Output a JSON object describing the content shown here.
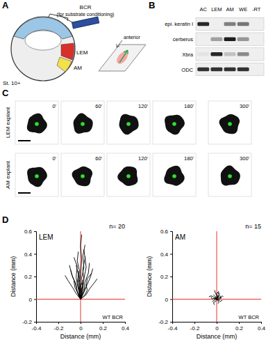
{
  "panel_a": {
    "label": "A",
    "bcr": "BCR",
    "bcr_note": "(for substrate conditioning)",
    "lem": "LEM",
    "am": "AM",
    "stage": "St. 10+",
    "anterior": "anterior"
  },
  "panel_b": {
    "label": "B",
    "columns": [
      "AC",
      "LEM",
      "AM",
      "WE",
      "-RT"
    ],
    "rows": [
      {
        "label": "epi. keratin I",
        "intensities": [
          0.9,
          0,
          0.5,
          0.55,
          0
        ]
      },
      {
        "label": "cerberus",
        "intensities": [
          0,
          0.35,
          0.95,
          0.4,
          0
        ]
      },
      {
        "label": "Xbra",
        "intensities": [
          0.05,
          0.9,
          0.2,
          0.45,
          0
        ]
      },
      {
        "label": "ODC",
        "intensities": [
          0.85,
          0.85,
          0.85,
          0.85,
          0
        ]
      }
    ]
  },
  "panel_c": {
    "label": "C",
    "rows": [
      {
        "label": "LEM explant",
        "times": [
          "0'",
          "60'",
          "120'",
          "180'",
          "300'"
        ]
      },
      {
        "label": "AM explant",
        "times": [
          "0'",
          "60'",
          "120'",
          "180'",
          "300'"
        ]
      }
    ]
  },
  "panel_d": {
    "label": "D"
  },
  "chart_data": [
    {
      "type": "line",
      "title": "n= 20",
      "annotations": [
        "LEM",
        "WT BCR"
      ],
      "color": "#000000",
      "xlabel": "Distance (mm)",
      "ylabel": "Distance (mm)",
      "xlim": [
        -0.4,
        0.4
      ],
      "ylim": [
        -0.2,
        0.6
      ],
      "xticks": [
        -0.4,
        -0.2,
        0,
        0.2,
        0.4
      ],
      "yticks": [
        -0.2,
        0,
        0.2,
        0.4,
        0.6
      ],
      "reference_lines": {
        "x": [
          0
        ],
        "y": [
          0
        ],
        "color": "#e8302a"
      },
      "series": [
        {
          "x": [
            0,
            -0.01,
            0.0,
            0.01,
            0.0,
            0.01
          ],
          "values": [
            0,
            0.1,
            0.22,
            0.35,
            0.47,
            0.57
          ]
        },
        {
          "x": [
            0,
            0.02,
            0.03,
            0.05,
            0.04
          ],
          "values": [
            0,
            0.08,
            0.18,
            0.28,
            0.38
          ]
        },
        {
          "x": [
            0,
            -0.03,
            -0.05,
            -0.08,
            -0.1
          ],
          "values": [
            0,
            0.07,
            0.15,
            0.22,
            0.3
          ]
        },
        {
          "x": [
            0,
            0.03,
            0.06,
            0.09,
            0.11
          ],
          "values": [
            0,
            0.06,
            0.13,
            0.2,
            0.27
          ]
        },
        {
          "x": [
            0,
            -0.02,
            -0.04,
            -0.03,
            -0.06
          ],
          "values": [
            0,
            0.09,
            0.19,
            0.29,
            0.37
          ]
        },
        {
          "x": [
            0,
            0.01,
            0.03,
            0.02,
            0.04,
            0.03
          ],
          "values": [
            0,
            0.08,
            0.17,
            0.26,
            0.36,
            0.44
          ]
        },
        {
          "x": [
            0,
            -0.04,
            -0.07,
            -0.11,
            -0.14
          ],
          "values": [
            0,
            0.05,
            0.1,
            0.16,
            0.21
          ]
        },
        {
          "x": [
            0,
            0.05,
            0.08,
            0.12,
            0.15
          ],
          "values": [
            0,
            0.04,
            0.09,
            0.14,
            0.18
          ]
        },
        {
          "x": [
            0,
            -0.01,
            -0.02,
            -0.01,
            -0.02
          ],
          "values": [
            0,
            0.06,
            0.12,
            0.19,
            0.25
          ]
        },
        {
          "x": [
            0,
            0.02,
            0.01,
            0.03,
            0.02,
            0.04
          ],
          "values": [
            0,
            0.09,
            0.19,
            0.28,
            0.38,
            0.48
          ]
        },
        {
          "x": [
            0,
            -0.02,
            -0.05,
            -0.06
          ],
          "values": [
            0,
            0.05,
            0.1,
            0.16
          ]
        },
        {
          "x": [
            0,
            0.03,
            0.04,
            0.07,
            0.08
          ],
          "values": [
            0,
            0.07,
            0.15,
            0.23,
            0.32
          ]
        },
        {
          "x": [
            0,
            -0.01,
            -0.03,
            -0.02,
            -0.04
          ],
          "values": [
            0,
            0.07,
            0.14,
            0.22,
            0.3
          ]
        },
        {
          "x": [
            0,
            0.01,
            0.0,
            0.02
          ],
          "values": [
            0,
            0.05,
            0.11,
            0.17
          ]
        },
        {
          "x": [
            0,
            -0.03,
            -0.04,
            -0.07,
            -0.09
          ],
          "values": [
            0,
            0.06,
            0.13,
            0.19,
            0.26
          ]
        },
        {
          "x": [
            0,
            0.02,
            0.05,
            0.06,
            0.1
          ],
          "values": [
            0,
            0.05,
            0.11,
            0.18,
            0.23
          ]
        },
        {
          "x": [
            0,
            -0.01,
            0.01,
            0.0,
            -0.01
          ],
          "values": [
            0,
            0.04,
            0.09,
            0.13,
            0.17
          ]
        },
        {
          "x": [
            0,
            0.0,
            -0.02,
            -0.01,
            -0.03,
            -0.02
          ],
          "values": [
            0,
            0.08,
            0.16,
            0.25,
            0.34,
            0.42
          ]
        },
        {
          "x": [
            0,
            0.04,
            0.06,
            0.05
          ],
          "values": [
            0,
            0.04,
            0.08,
            0.13
          ]
        },
        {
          "x": [
            0,
            -0.02,
            0.0,
            -0.01,
            0.01
          ],
          "values": [
            0,
            0.03,
            0.07,
            0.1,
            0.14
          ]
        }
      ]
    },
    {
      "type": "line",
      "title": "n= 15",
      "annotations": [
        "AM",
        "WT BCR"
      ],
      "color": "#000000",
      "xlabel": "Distance (mm)",
      "ylabel": "Distance (mm)",
      "xlim": [
        -0.4,
        0.4
      ],
      "ylim": [
        -0.2,
        0.6
      ],
      "xticks": [
        -0.4,
        -0.2,
        0,
        0.2,
        0.4
      ],
      "yticks": [
        -0.2,
        0,
        0.2,
        0.4,
        0.6
      ],
      "reference_lines": {
        "x": [
          0
        ],
        "y": [
          0
        ],
        "color": "#e8302a"
      },
      "series": [
        {
          "x": [
            0,
            0.01,
            0.02,
            0.03
          ],
          "values": [
            0,
            0.01,
            0.03,
            0.04
          ]
        },
        {
          "x": [
            0,
            -0.02,
            -0.04,
            -0.05
          ],
          "values": [
            0,
            0.01,
            0.0,
            0.02
          ]
        },
        {
          "x": [
            0,
            0.02,
            0.03,
            0.05
          ],
          "values": [
            0,
            -0.01,
            -0.02,
            -0.01
          ]
        },
        {
          "x": [
            0,
            -0.01,
            -0.03,
            -0.02
          ],
          "values": [
            0,
            -0.02,
            -0.03,
            -0.05
          ]
        },
        {
          "x": [
            0,
            0.01,
            0.0,
            0.02
          ],
          "values": [
            0,
            0.02,
            0.05,
            0.07
          ]
        },
        {
          "x": [
            0,
            -0.03,
            -0.05,
            -0.07
          ],
          "values": [
            0,
            0.02,
            0.03,
            0.02
          ]
        },
        {
          "x": [
            0,
            0.02,
            0.04,
            0.03
          ],
          "values": [
            0,
            0.02,
            0.01,
            0.03
          ]
        },
        {
          "x": [
            0,
            0.0,
            -0.01,
            -0.02
          ],
          "values": [
            0,
            0.03,
            0.05,
            0.08
          ]
        },
        {
          "x": [
            0,
            0.01,
            0.03,
            0.04
          ],
          "values": [
            0,
            -0.01,
            0.0,
            0.02
          ]
        },
        {
          "x": [
            0,
            -0.01,
            -0.02,
            -0.04
          ],
          "values": [
            0,
            0.01,
            -0.01,
            -0.02
          ]
        },
        {
          "x": [
            0,
            0.02,
            0.01,
            0.03
          ],
          "values": [
            0,
            0.04,
            0.06,
            0.05
          ]
        },
        {
          "x": [
            0,
            -0.02,
            -0.01,
            -0.03
          ],
          "values": [
            0,
            0.0,
            0.02,
            0.04
          ]
        },
        {
          "x": [
            0,
            0.01,
            0.02,
            0.01
          ],
          "values": [
            0,
            -0.01,
            -0.03,
            -0.04
          ]
        },
        {
          "x": [
            0,
            -0.01,
            0.0,
            0.01
          ],
          "values": [
            0,
            0.02,
            0.01,
            0.03
          ]
        },
        {
          "x": [
            0,
            0.03,
            0.05,
            0.06
          ],
          "values": [
            0,
            0.01,
            0.03,
            0.02
          ]
        }
      ]
    }
  ]
}
